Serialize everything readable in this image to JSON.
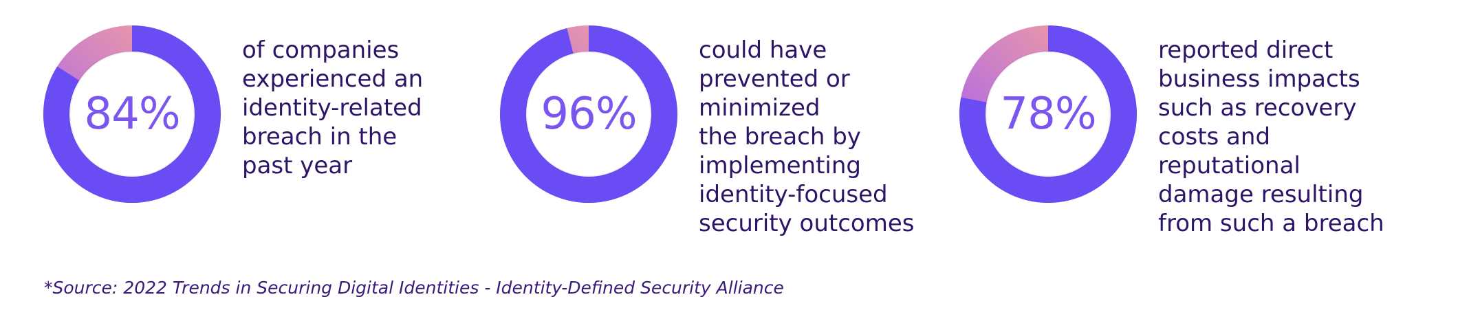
{
  "chart_data": [
    {
      "type": "pie",
      "value_percent": 84,
      "label": "84%",
      "description_lines": [
        "of companies",
        "experienced an",
        "identity-related",
        "breach in the",
        "past year"
      ]
    },
    {
      "type": "pie",
      "value_percent": 96,
      "label": "96%",
      "description_lines": [
        "could have",
        "prevented or",
        "minimized",
        "the breach by",
        "implementing",
        "identity-focused",
        "security outcomes"
      ]
    },
    {
      "type": "pie",
      "value_percent": 78,
      "label": "78%",
      "description_lines": [
        "reported direct",
        "business impacts",
        "such as recovery",
        "costs and",
        "reputational",
        "damage resulting",
        "from such a breach"
      ]
    }
  ],
  "source": "*Source: 2022 Trends in Securing Digital Identities - Identity-Defined Security Alliance",
  "colors": {
    "ring": "#6a4cf4",
    "ring_dark": "#5b3ee8",
    "remainder_start": "#f7a39a",
    "remainder_end": "#a560f0",
    "percent_text": "#7a55f0",
    "body_text": "#2c1467"
  }
}
